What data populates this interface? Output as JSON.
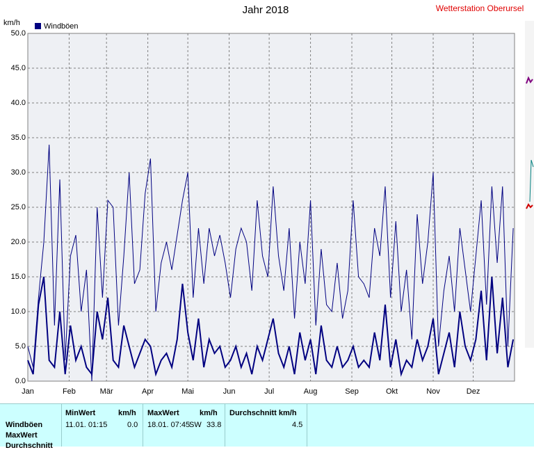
{
  "chart_data": {
    "type": "line",
    "title": "Jahr 2018",
    "station": "Wetterstation Oberursel",
    "y_unit": "km/h",
    "x": [
      0,
      4,
      8,
      12,
      16,
      20,
      24,
      28,
      32,
      36,
      40,
      44,
      48,
      52,
      56,
      60,
      64,
      68,
      72,
      76,
      80,
      84,
      88,
      92,
      96,
      100,
      104,
      108,
      112,
      116,
      120,
      124,
      128,
      132,
      136,
      140,
      144,
      148,
      152,
      156,
      160,
      164,
      168,
      172,
      176,
      180,
      184,
      188,
      192,
      196,
      200,
      204,
      208,
      212,
      216,
      220,
      224,
      228,
      232,
      236,
      240,
      244,
      248,
      252,
      256,
      260,
      264,
      268,
      272,
      276,
      280,
      284,
      288,
      292,
      296,
      300,
      304,
      308,
      312,
      316,
      320,
      324,
      328,
      332,
      336,
      340,
      344,
      348,
      352,
      356,
      360,
      364
    ],
    "series": [
      {
        "color": "#000080",
        "values": [
          5,
          2,
          12,
          20,
          34,
          8,
          29,
          3,
          18,
          21,
          10,
          16,
          0,
          25,
          12,
          26,
          25,
          8,
          18,
          30,
          14,
          16,
          27,
          32,
          10,
          17,
          20,
          16,
          21,
          26,
          30,
          12,
          22,
          14,
          22,
          18,
          21,
          17,
          12,
          19,
          22,
          20,
          13,
          26,
          18,
          15,
          28,
          18,
          13,
          22,
          9,
          20,
          14,
          26,
          8,
          19,
          11,
          10,
          17,
          9,
          13,
          26,
          15,
          14,
          12,
          22,
          18,
          28,
          12,
          23,
          10,
          16,
          6,
          24,
          14,
          20,
          30,
          5,
          13,
          18,
          10,
          22,
          16,
          10,
          18,
          26,
          11,
          28,
          17,
          28,
          5,
          22
        ]
      },
      {
        "name": "Windböen",
        "color": "#000080",
        "values": [
          3,
          1,
          11,
          15,
          3,
          2,
          10,
          1,
          8,
          3,
          5,
          2,
          1,
          10,
          6,
          12,
          3,
          2,
          8,
          5,
          2,
          4,
          6,
          5,
          1,
          3,
          4,
          2,
          6,
          14,
          7,
          3,
          9,
          2,
          6,
          4,
          5,
          2,
          3,
          5,
          2,
          4,
          1,
          5,
          3,
          6,
          9,
          4,
          2,
          5,
          1,
          7,
          3,
          6,
          1,
          8,
          3,
          2,
          5,
          2,
          3,
          5,
          2,
          3,
          2,
          7,
          3,
          11,
          2,
          6,
          1,
          3,
          2,
          6,
          3,
          5,
          9,
          1,
          4,
          7,
          2,
          10,
          5,
          3,
          6,
          13,
          3,
          15,
          4,
          12,
          2,
          6
        ]
      }
    ],
    "xlim": [
      0,
      365
    ],
    "xticks": [
      {
        "value": 0,
        "label": "Jan"
      },
      {
        "value": 31,
        "label": "Feb"
      },
      {
        "value": 59,
        "label": "Mär"
      },
      {
        "value": 90,
        "label": "Apr"
      },
      {
        "value": 120,
        "label": "Mai"
      },
      {
        "value": 151,
        "label": "Jun"
      },
      {
        "value": 181,
        "label": "Jul"
      },
      {
        "value": 212,
        "label": "Aug"
      },
      {
        "value": 243,
        "label": "Sep"
      },
      {
        "value": 273,
        "label": "Okt"
      },
      {
        "value": 304,
        "label": "Nov"
      },
      {
        "value": 334,
        "label": "Dez"
      }
    ],
    "ylim": [
      0,
      50
    ],
    "yticks": [
      {
        "value": 0,
        "label": "0.0"
      },
      {
        "value": 5,
        "label": "5.0"
      },
      {
        "value": 10,
        "label": "10.0"
      },
      {
        "value": 15,
        "label": "15.0"
      },
      {
        "value": 20,
        "label": "20.0"
      },
      {
        "value": 25,
        "label": "25.0"
      },
      {
        "value": 30,
        "label": "30.0"
      },
      {
        "value": 35,
        "label": "35.0"
      },
      {
        "value": 40,
        "label": "40.0"
      },
      {
        "value": 45,
        "label": "45.0"
      },
      {
        "value": 50,
        "label": "50.0"
      }
    ],
    "grid": true
  },
  "table": {
    "headers": [
      "MinWert",
      "km/h",
      "MaxWert",
      "km/h",
      "Durchschnitt km/h"
    ],
    "row_labels": [
      "Windböen",
      "MaxWert",
      "Durchschnitt"
    ],
    "row": [
      "11.01.  01:15",
      "0.0",
      "18.01.  07:45",
      "SW",
      "33.8",
      "4.5"
    ]
  }
}
